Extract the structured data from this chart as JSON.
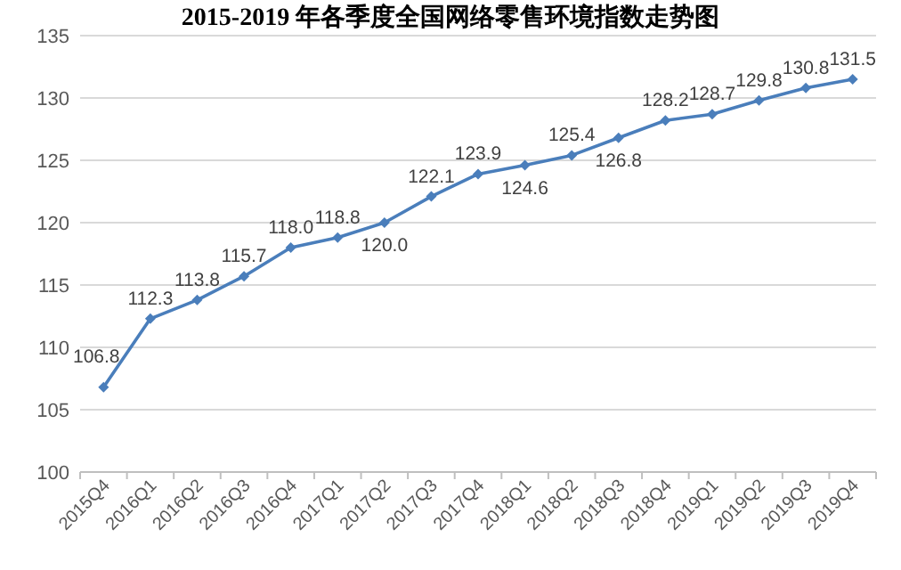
{
  "chart_data": {
    "type": "line",
    "title": "2015-2019 年各季度全国网络零售环境指数走势图",
    "categories": [
      "2015Q4",
      "2016Q1",
      "2016Q2",
      "2016Q3",
      "2016Q4",
      "2017Q1",
      "2017Q2",
      "2017Q3",
      "2017Q4",
      "2018Q1",
      "2018Q2",
      "2018Q3",
      "2018Q4",
      "2019Q1",
      "2019Q2",
      "2019Q3",
      "2019Q4"
    ],
    "series": [
      {
        "color": "#4a7ebb",
        "values": [
          106.8,
          112.3,
          113.8,
          115.7,
          118.0,
          118.8,
          120.0,
          122.1,
          123.9,
          124.6,
          125.4,
          126.8,
          128.2,
          128.7,
          129.8,
          130.8,
          131.5
        ]
      }
    ],
    "value_labels": [
      "106.8",
      "112.3",
      "113.8",
      "115.7",
      "118.0",
      "118.8",
      "120.0",
      "122.1",
      "123.9",
      "124.6",
      "125.4",
      "126.8",
      "128.2",
      "128.7",
      "129.8",
      "130.8",
      "131.5"
    ],
    "ylim": [
      100,
      135
    ],
    "yticks": [
      100,
      105,
      110,
      115,
      120,
      125,
      130,
      135
    ],
    "grid": "y",
    "marker": "diamond"
  }
}
